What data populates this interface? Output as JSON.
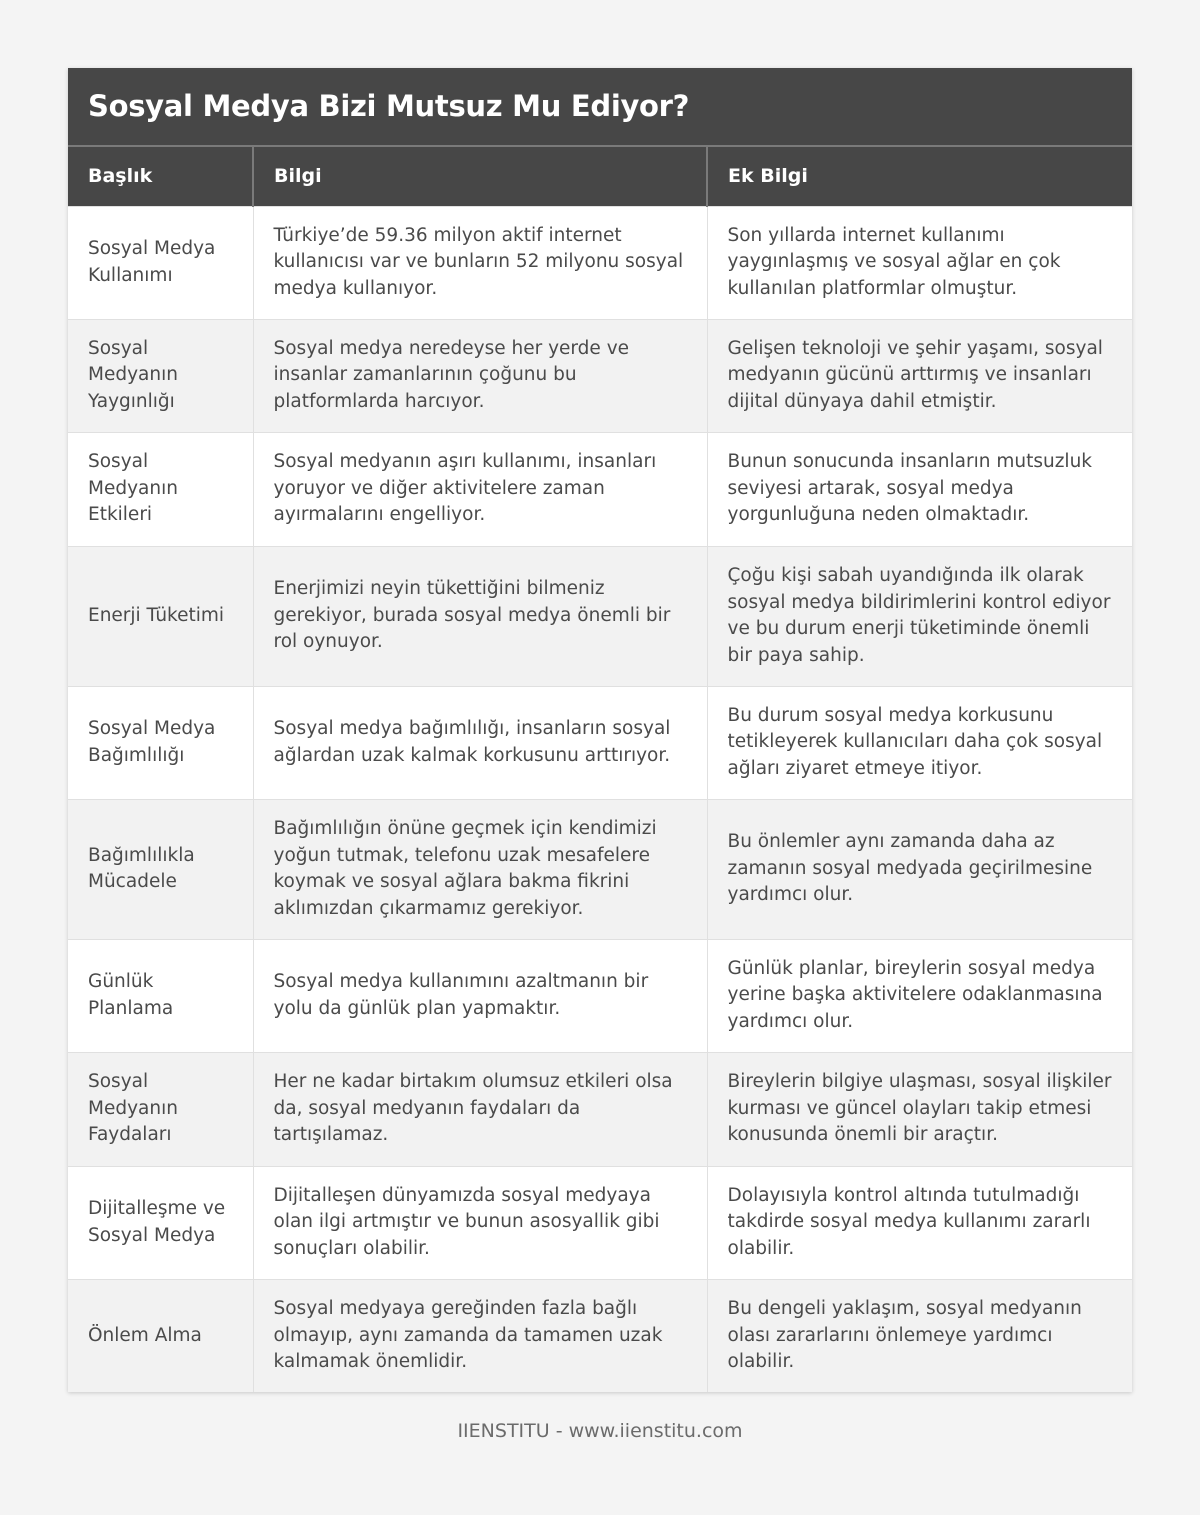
{
  "title": "Sosyal Medya Bizi Mutsuz Mu Ediyor?",
  "columns": [
    "Başlık",
    "Bilgi",
    "Ek Bilgi"
  ],
  "rows": [
    [
      "Sosyal Medya Kullanımı",
      "Türkiye’de 59.36 milyon aktif internet kullanıcısı var ve bunların 52 milyonu sosyal medya kullanıyor.",
      "Son yıllarda internet kullanımı yaygınlaşmış ve sosyal ağlar en çok kullanılan platformlar olmuştur."
    ],
    [
      "Sosyal Medyanın Yaygınlığı",
      "Sosyal medya neredeyse her yerde ve insanlar zamanlarının çoğunu bu platformlarda harcıyor.",
      "Gelişen teknoloji ve şehir yaşamı, sosyal medyanın gücünü arttırmış ve insanları dijital dünyaya dahil etmiştir."
    ],
    [
      "Sosyal Medyanın Etkileri",
      "Sosyal medyanın aşırı kullanımı, insanları yoruyor ve diğer aktivitelere zaman ayırmalarını engelliyor.",
      "Bunun sonucunda insanların mutsuzluk seviyesi artarak, sosyal medya yorgunluğuna neden olmaktadır."
    ],
    [
      "Enerji Tüketimi",
      "Enerjimizi neyin tükettiğini bilmeniz gerekiyor, burada sosyal medya önemli bir rol oynuyor.",
      "Çoğu kişi sabah uyandığında ilk olarak sosyal medya bildirimlerini kontrol ediyor ve bu durum enerji tüketiminde önemli bir paya sahip."
    ],
    [
      "Sosyal Medya Bağımlılığı",
      "Sosyal medya bağımlılığı, insanların sosyal ağlardan uzak kalmak korkusunu arttırıyor.",
      "Bu durum sosyal medya korkusunu tetikleyerek kullanıcıları daha çok sosyal ağları ziyaret etmeye itiyor."
    ],
    [
      "Bağımlılıkla Mücadele",
      "Bağımlılığın önüne geçmek için kendimizi yoğun tutmak, telefonu uzak mesafelere koymak ve sosyal ağlara bakma fikrini aklımızdan çıkarmamız gerekiyor.",
      "Bu önlemler aynı zamanda daha az zamanın sosyal medyada geçirilmesine yardımcı olur."
    ],
    [
      "Günlük Planlama",
      "Sosyal medya kullanımını azaltmanın bir yolu da günlük plan yapmaktır.",
      "Günlük planlar, bireylerin sosyal medya yerine başka aktivitelere odaklanmasına yardımcı olur."
    ],
    [
      "Sosyal Medyanın Faydaları",
      "Her ne kadar birtakım olumsuz etkileri olsa da, sosyal medyanın faydaları da tartışılamaz.",
      "Bireylerin bilgiye ulaşması, sosyal ilişkiler kurması ve güncel olayları takip etmesi konusunda önemli bir araçtır."
    ],
    [
      "Dijitalleşme ve Sosyal Medya",
      "Dijitalleşen dünyamızda sosyal medyaya olan ilgi artmıştır ve bunun asosyallik gibi sonuçları olabilir.",
      "Dolayısıyla kontrol altında tutulmadığı takdirde sosyal medya kullanımı zararlı olabilir."
    ],
    [
      "Önlem Alma",
      "Sosyal medyaya gereğinden fazla bağlı olmayıp, aynı zamanda da tamamen uzak kalmamak önemlidir.",
      "Bu dengeli yaklaşım, sosyal medyanın olası zararlarını önlemeye yardımcı olabilir."
    ]
  ],
  "footer": "IIENSTITU - www.iienstitu.com"
}
